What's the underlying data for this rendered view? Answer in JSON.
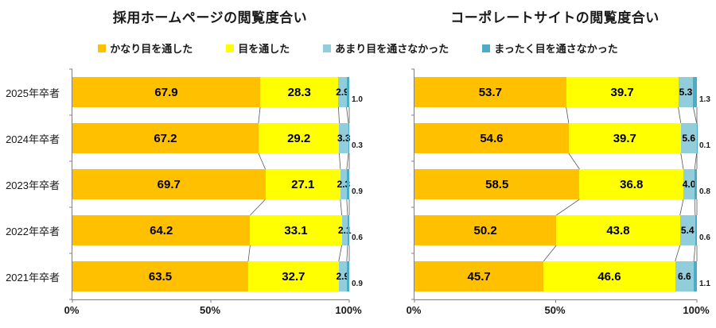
{
  "chart_data": [
    {
      "type": "bar",
      "orientation": "horizontal_stacked",
      "title": "採用ホームページの閲覧度合い",
      "categories": [
        "2025年卒者",
        "2024年卒者",
        "2023年卒者",
        "2022年卒者",
        "2021年卒者"
      ],
      "series": [
        {
          "name": "かなり目を通した",
          "color": "#FFC000",
          "values": [
            67.9,
            67.2,
            69.7,
            64.2,
            63.5
          ]
        },
        {
          "name": "目を通した",
          "color": "#FFFF00",
          "values": [
            28.3,
            29.2,
            27.1,
            33.1,
            32.7
          ]
        },
        {
          "name": "あまり目を通さなかった",
          "color": "#92CDDC",
          "values": [
            2.9,
            3.3,
            2.3,
            2.1,
            2.9
          ]
        },
        {
          "name": "まったく目を通さなかった",
          "color": "#4BACC6",
          "values": [
            1.0,
            0.3,
            0.9,
            0.6,
            0.9
          ]
        }
      ],
      "xlim": [
        0,
        100
      ],
      "x_ticks": [
        "0%",
        "50%",
        "100%"
      ],
      "grid": false,
      "legend_position": "top",
      "data_labels": true,
      "show_category_labels": true
    },
    {
      "type": "bar",
      "orientation": "horizontal_stacked",
      "title": "コーポレートサイトの閲覧度合い",
      "categories": [
        "2025年卒者",
        "2024年卒者",
        "2023年卒者",
        "2022年卒者",
        "2021年卒者"
      ],
      "series": [
        {
          "name": "かなり目を通した",
          "color": "#FFC000",
          "values": [
            53.7,
            54.6,
            58.5,
            50.2,
            45.7
          ]
        },
        {
          "name": "目を通した",
          "color": "#FFFF00",
          "values": [
            39.7,
            39.7,
            36.8,
            43.8,
            46.6
          ]
        },
        {
          "name": "あまり目を通さなかった",
          "color": "#92CDDC",
          "values": [
            5.3,
            5.6,
            4.0,
            5.4,
            6.6
          ]
        },
        {
          "name": "まったく目を通さなかった",
          "color": "#4BACC6",
          "values": [
            1.3,
            0.1,
            0.8,
            0.6,
            1.1
          ]
        }
      ],
      "xlim": [
        0,
        100
      ],
      "x_ticks": [
        "0%",
        "50%",
        "100%"
      ],
      "grid": false,
      "legend_position": "top",
      "data_labels": true,
      "show_category_labels": false
    }
  ],
  "style": {
    "axis_color": "#808080",
    "connector_color": "#595959",
    "text_color": "#1a1a1a"
  }
}
